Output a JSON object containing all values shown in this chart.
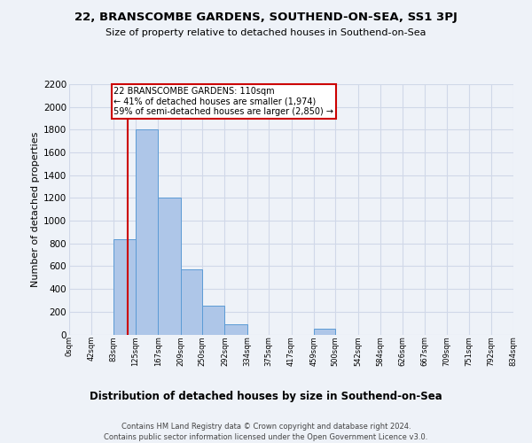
{
  "title1": "22, BRANSCOMBE GARDENS, SOUTHEND-ON-SEA, SS1 3PJ",
  "title2": "Size of property relative to detached houses in Southend-on-Sea",
  "xlabel": "Distribution of detached houses by size in Southend-on-Sea",
  "ylabel": "Number of detached properties",
  "footer1": "Contains HM Land Registry data © Crown copyright and database right 2024.",
  "footer2": "Contains public sector information licensed under the Open Government Licence v3.0.",
  "bin_edges": [
    0,
    42,
    83,
    125,
    167,
    209,
    250,
    292,
    334,
    375,
    417,
    459,
    500,
    542,
    584,
    626,
    667,
    709,
    751,
    792,
    834
  ],
  "bin_labels": [
    "0sqm",
    "42sqm",
    "83sqm",
    "125sqm",
    "167sqm",
    "209sqm",
    "250sqm",
    "292sqm",
    "334sqm",
    "375sqm",
    "417sqm",
    "459sqm",
    "500sqm",
    "542sqm",
    "584sqm",
    "626sqm",
    "667sqm",
    "709sqm",
    "751sqm",
    "792sqm",
    "834sqm"
  ],
  "bar_heights": [
    0,
    0,
    840,
    1800,
    1200,
    570,
    255,
    90,
    0,
    0,
    0,
    50,
    0,
    0,
    0,
    0,
    0,
    0,
    0,
    0
  ],
  "bar_color": "#aec6e8",
  "bar_edge_color": "#5b9bd5",
  "grid_color": "#d0d8e8",
  "background_color": "#eef2f8",
  "property_line_x": 110,
  "property_line_color": "#cc0000",
  "annotation_text": "22 BRANSCOMBE GARDENS: 110sqm\n← 41% of detached houses are smaller (1,974)\n59% of semi-detached houses are larger (2,850) →",
  "annotation_box_color": "#cc0000",
  "ylim": [
    0,
    2200
  ],
  "yticks": [
    0,
    200,
    400,
    600,
    800,
    1000,
    1200,
    1400,
    1600,
    1800,
    2000,
    2200
  ]
}
